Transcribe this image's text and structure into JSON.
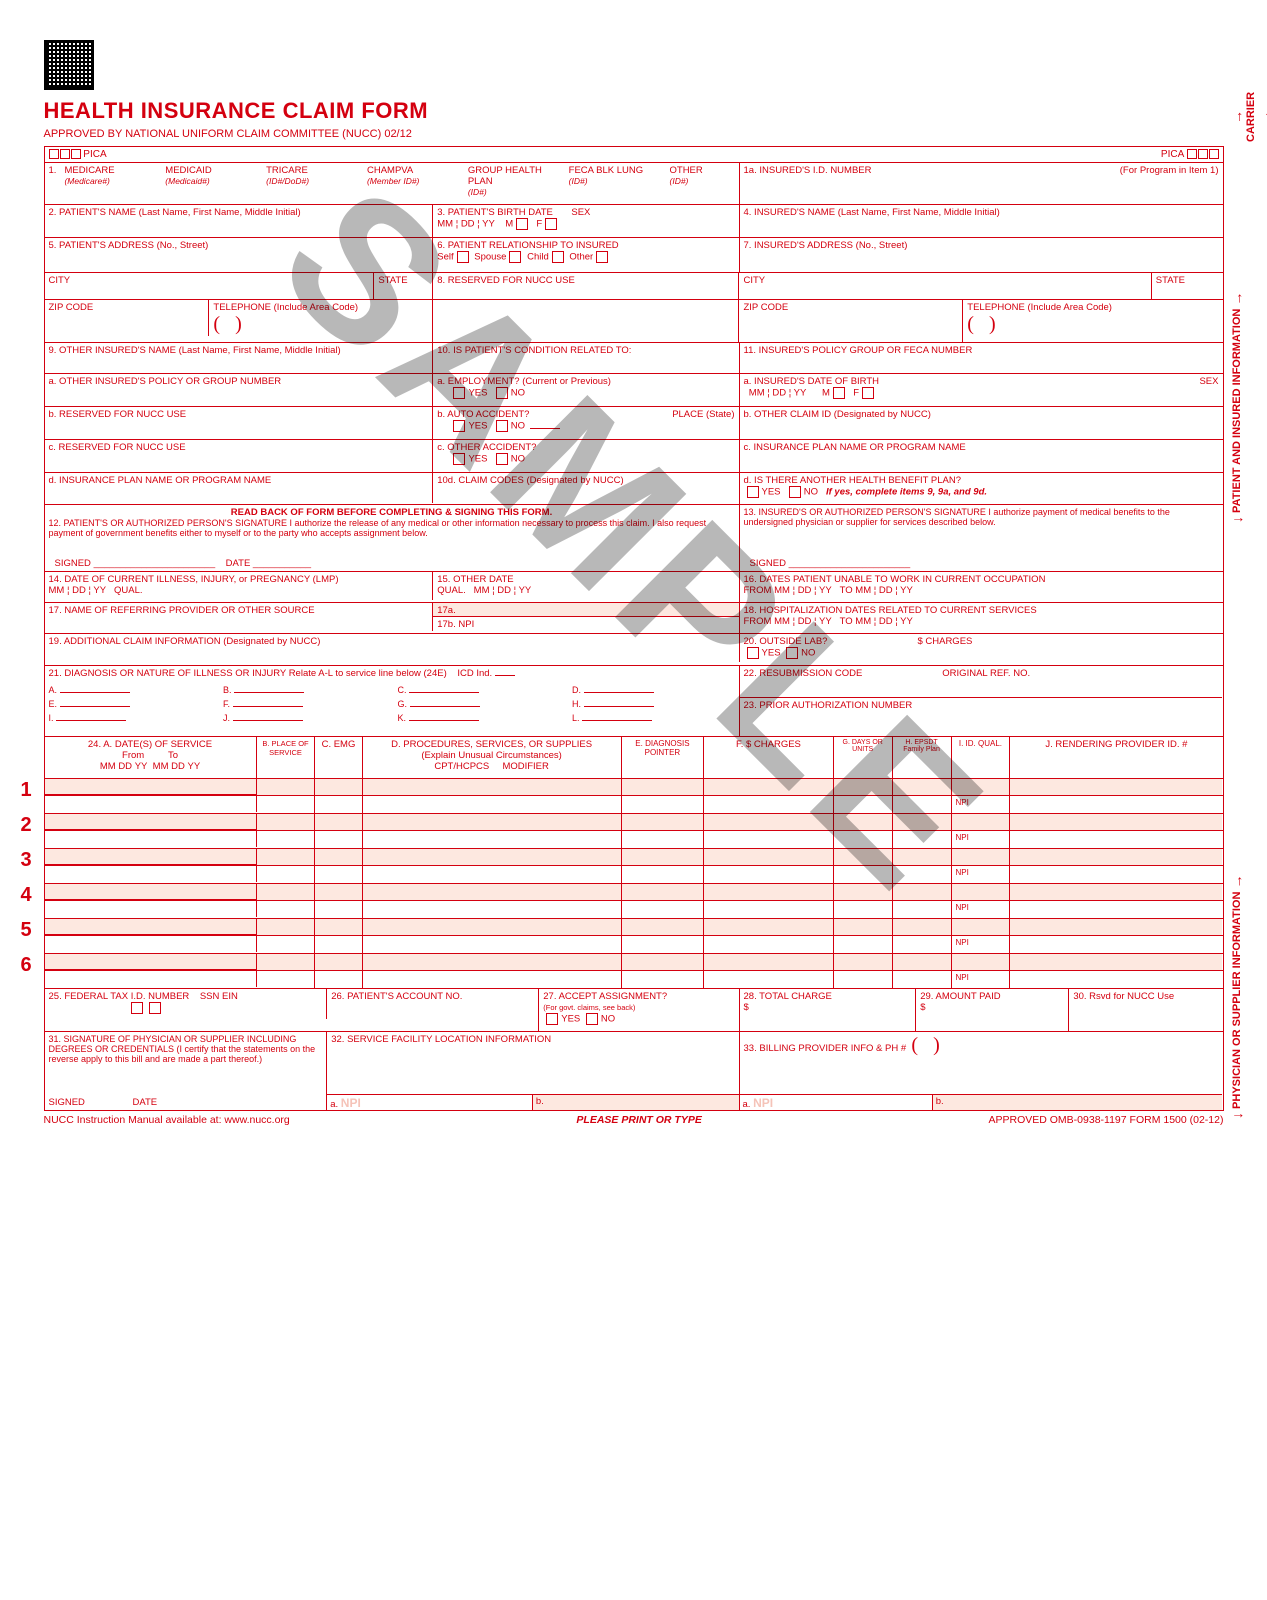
{
  "header": {
    "title": "HEALTH INSURANCE CLAIM FORM",
    "subtitle": "APPROVED BY NATIONAL UNIFORM CLAIM COMMITTEE (NUCC) 02/12",
    "pica": "PICA"
  },
  "watermark": "SAMPLE",
  "side_labels": {
    "carrier": "CARRIER",
    "patient": "PATIENT AND INSURED INFORMATION",
    "physician": "PHYSICIAN OR SUPPLIER INFORMATION"
  },
  "box1": {
    "num": "1.",
    "options": [
      "MEDICARE",
      "MEDICAID",
      "TRICARE",
      "CHAMPVA",
      "GROUP HEALTH PLAN",
      "FECA BLK LUNG",
      "OTHER"
    ],
    "subs": [
      "(Medicare#)",
      "(Medicaid#)",
      "(ID#/DoD#)",
      "(Member ID#)",
      "(ID#)",
      "(ID#)",
      "(ID#)"
    ]
  },
  "box1a": {
    "label": "1a. INSURED'S I.D. NUMBER",
    "hint": "(For Program in Item 1)"
  },
  "box2": "2. PATIENT'S NAME (Last Name, First Name, Middle Initial)",
  "box3": {
    "label": "3. PATIENT'S BIRTH DATE",
    "mm": "MM",
    "dd": "DD",
    "yy": "YY",
    "sex": "SEX",
    "m": "M",
    "f": "F"
  },
  "box4": "4. INSURED'S NAME (Last Name, First Name, Middle Initial)",
  "box5": "5. PATIENT'S ADDRESS (No., Street)",
  "box6": {
    "label": "6. PATIENT RELATIONSHIP TO INSURED",
    "self": "Self",
    "spouse": "Spouse",
    "child": "Child",
    "other": "Other"
  },
  "box7": "7. INSURED'S ADDRESS (No., Street)",
  "city": "CITY",
  "state": "STATE",
  "zip": "ZIP CODE",
  "tel": "TELEPHONE (Include Area Code)",
  "box8": "8. RESERVED FOR NUCC USE",
  "box9": "9. OTHER INSURED'S NAME (Last Name, First Name, Middle Initial)",
  "box9a": "a. OTHER INSURED'S POLICY OR GROUP NUMBER",
  "box9b": "b. RESERVED FOR NUCC USE",
  "box9c": "c. RESERVED FOR NUCC USE",
  "box9d": "d. INSURANCE PLAN NAME OR PROGRAM NAME",
  "box10": "10. IS PATIENT'S CONDITION RELATED TO:",
  "box10a": "a. EMPLOYMENT? (Current or Previous)",
  "box10b": "b. AUTO ACCIDENT?",
  "box10c": "c. OTHER ACCIDENT?",
  "box10d": "10d. CLAIM CODES (Designated by NUCC)",
  "place": "PLACE (State)",
  "yes": "YES",
  "no": "NO",
  "box11": "11. INSURED'S POLICY GROUP OR FECA NUMBER",
  "box11a": "a. INSURED'S DATE OF BIRTH",
  "box11b": "b. OTHER CLAIM ID (Designated by NUCC)",
  "box11c": "c. INSURANCE PLAN NAME OR PROGRAM NAME",
  "box11d": {
    "label": "d. IS THERE ANOTHER HEALTH BENEFIT PLAN?",
    "hint": "If yes, complete items 9, 9a, and 9d."
  },
  "readback": "READ BACK OF FORM BEFORE COMPLETING & SIGNING THIS FORM.",
  "box12": "12. PATIENT'S OR AUTHORIZED PERSON'S SIGNATURE  I authorize the release of any medical or other information necessary to process this claim. I also request payment of government benefits either to myself or to the party who accepts assignment below.",
  "box13": "13. INSURED'S OR AUTHORIZED PERSON'S SIGNATURE I authorize payment of medical benefits to the undersigned physician or supplier for services described below.",
  "signed": "SIGNED",
  "date": "DATE",
  "box14": "14. DATE OF CURRENT ILLNESS, INJURY, or PREGNANCY (LMP)",
  "qual": "QUAL.",
  "box15": "15. OTHER DATE",
  "box16": "16. DATES PATIENT UNABLE TO WORK IN CURRENT OCCUPATION",
  "from": "FROM",
  "to": "TO",
  "box17": "17. NAME OF REFERRING PROVIDER OR OTHER SOURCE",
  "box17a": "17a.",
  "box17b": "17b.",
  "npi": "NPI",
  "box18": "18. HOSPITALIZATION DATES RELATED TO CURRENT SERVICES",
  "box19": "19. ADDITIONAL CLAIM INFORMATION (Designated by NUCC)",
  "box20": "20. OUTSIDE LAB?",
  "charges": "$ CHARGES",
  "box21": "21. DIAGNOSIS OR NATURE OF ILLNESS OR INJURY  Relate A-L to service line below (24E)",
  "icd": "ICD Ind.",
  "diag_letters": [
    "A.",
    "B.",
    "C.",
    "D.",
    "E.",
    "F.",
    "G.",
    "H.",
    "I.",
    "J.",
    "K.",
    "L."
  ],
  "box22": "22. RESUBMISSION CODE",
  "origref": "ORIGINAL REF. NO.",
  "box23": "23. PRIOR AUTHORIZATION NUMBER",
  "box24": {
    "a": "24. A.     DATE(S) OF SERVICE",
    "from": "From",
    "to": "To",
    "b": "B. PLACE OF SERVICE",
    "c": "C. EMG",
    "d": "D. PROCEDURES, SERVICES, OR SUPPLIES",
    "dexp": "(Explain Unusual Circumstances)",
    "cpt": "CPT/HCPCS",
    "mod": "MODIFIER",
    "e": "E. DIAGNOSIS POINTER",
    "f": "F. $ CHARGES",
    "g": "G. DAYS OR UNITS",
    "h": "H. EPSDT Family Plan",
    "i": "I. ID. QUAL.",
    "j": "J. RENDERING PROVIDER ID. #"
  },
  "svc_rows": [
    1,
    2,
    3,
    4,
    5,
    6
  ],
  "box25": "25. FEDERAL TAX I.D. NUMBER",
  "ssn": "SSN  EIN",
  "box26": "26. PATIENT'S ACCOUNT NO.",
  "box27": {
    "label": "27. ACCEPT ASSIGNMENT?",
    "hint": "(For govt. claims, see back)"
  },
  "box28": "28. TOTAL CHARGE",
  "box29": "29. AMOUNT PAID",
  "box30": "30. Rsvd for NUCC Use",
  "box31": "31. SIGNATURE OF PHYSICIAN OR SUPPLIER INCLUDING DEGREES OR CREDENTIALS (I certify that the statements on the reverse apply to this bill and are made a part thereof.)",
  "box32": "32. SERVICE FACILITY LOCATION INFORMATION",
  "box33": "33. BILLING PROVIDER INFO & PH #",
  "a_label": "a.",
  "b_label": "b.",
  "footer": {
    "left": "NUCC Instruction Manual available at: www.nucc.org",
    "center": "PLEASE PRINT OR TYPE",
    "right": "APPROVED OMB-0938-1197 FORM 1500 (02-12)"
  },
  "dollar": "$"
}
